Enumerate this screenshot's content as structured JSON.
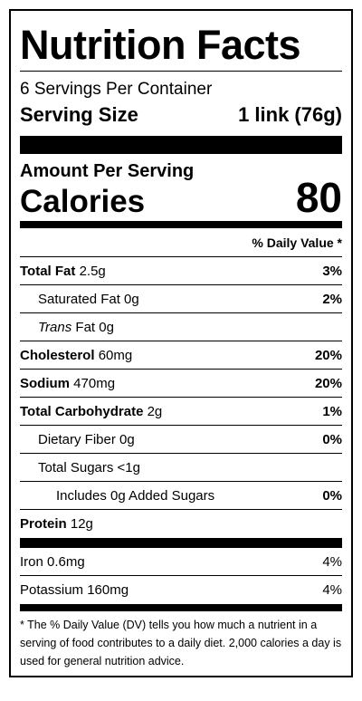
{
  "title": "Nutrition Facts",
  "servings": "6 Servings Per Container",
  "serving_size": {
    "label": "Serving Size",
    "value": "1 link (76g)"
  },
  "amount_per_serving": "Amount Per Serving",
  "calories": {
    "label": "Calories",
    "value": "80"
  },
  "daily_value_header": "% Daily Value *",
  "nutrients": [
    {
      "name": "Total Fat",
      "amount": "2.5g",
      "dv": "3%"
    },
    {
      "name": "Saturated Fat 0g",
      "dv": "2%"
    },
    {
      "name_italic": "Trans",
      "name": "Fat 0g"
    },
    {
      "name": "Cholesterol",
      "amount": "60mg",
      "dv": "20%"
    },
    {
      "name": "Sodium",
      "amount": "470mg",
      "dv": "20%"
    },
    {
      "name": "Total Carbohydrate",
      "amount": "2g",
      "dv": "1%"
    },
    {
      "name": "Dietary Fiber 0g",
      "dv": "0%"
    },
    {
      "name": "Total Sugars <1g"
    },
    {
      "name": "Includes 0g Added Sugars",
      "dv": "0%"
    },
    {
      "name": "Protein",
      "amount": "12g"
    }
  ],
  "minerals": [
    {
      "name": "Iron 0.6mg",
      "dv": "4%"
    },
    {
      "name": "Potassium 160mg",
      "dv": "4%"
    }
  ],
  "footnote": "* The % Daily Value (DV) tells you how much a nutrient in a serving of food contributes to a daily diet. 2,000 calories a day is used for general nutrition advice."
}
